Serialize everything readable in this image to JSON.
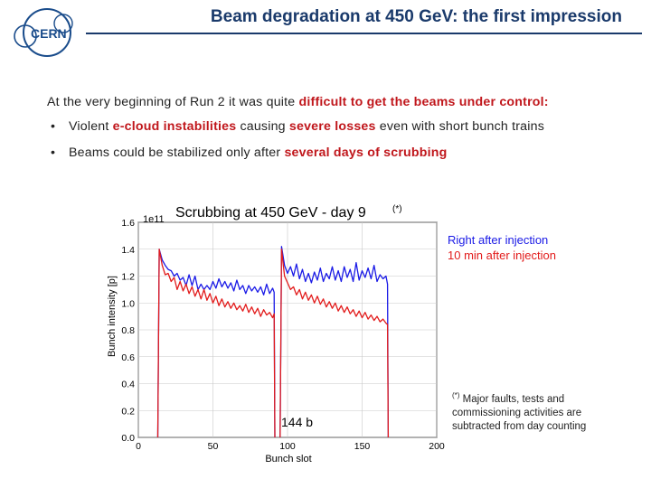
{
  "header": {
    "logo_text": "CERN",
    "title": "Beam degradation at 450 GeV: the first impression"
  },
  "intro": {
    "prefix": "At the very beginning of Run 2 it was quite ",
    "highlight": "difficult to get the beams under control:"
  },
  "bullets": [
    {
      "marker": "•",
      "t1": "Violent ",
      "h1": "e-cloud instabilities",
      "t2": " causing ",
      "h2": "severe losses",
      "t3": " even with short bunch trains"
    },
    {
      "marker": "•",
      "t1": "Beams could be stabilized only after ",
      "h1": "several days of scrubbing"
    }
  ],
  "chart_data": {
    "type": "line",
    "title": "Scrubbing at 450 GeV - day 9",
    "title_note": "(*)",
    "xlabel": "Bunch slot",
    "ylabel": "Bunch intensity [p]",
    "y_scale_label": "1e11",
    "xlim": [
      0,
      200
    ],
    "ylim": [
      0.0,
      1.6
    ],
    "xticks": [
      "0",
      "50",
      "100",
      "150",
      "200"
    ],
    "yticks": [
      "0.0",
      "0.2",
      "0.4",
      "0.6",
      "0.8",
      "1.0",
      "1.2",
      "1.4",
      "1.6"
    ],
    "annotation": "144 b",
    "series": [
      {
        "name": "Right after injection",
        "color": "#1a1ae6",
        "segments": [
          {
            "x": [
              14,
              16,
              18,
              20,
              22,
              24,
              26,
              28,
              30,
              32,
              34,
              36,
              38,
              40,
              42,
              44,
              46,
              48,
              50,
              52,
              54,
              56,
              58,
              60,
              62,
              64,
              66,
              68,
              70,
              72,
              74,
              76,
              78,
              80,
              82,
              84,
              86,
              88,
              90,
              91
            ],
            "y": [
              1.4,
              1.32,
              1.28,
              1.25,
              1.24,
              1.2,
              1.22,
              1.17,
              1.19,
              1.13,
              1.21,
              1.13,
              1.2,
              1.1,
              1.14,
              1.1,
              1.13,
              1.1,
              1.16,
              1.11,
              1.18,
              1.12,
              1.16,
              1.11,
              1.15,
              1.09,
              1.17,
              1.1,
              1.13,
              1.07,
              1.13,
              1.09,
              1.12,
              1.08,
              1.12,
              1.06,
              1.14,
              1.07,
              1.11,
              1.08
            ]
          },
          {
            "x": [
              96,
              98,
              100,
              102,
              104,
              106,
              108,
              110,
              112,
              114,
              116,
              118,
              120,
              122,
              124,
              126,
              128,
              130,
              132,
              134,
              136,
              138,
              140,
              142,
              144,
              146,
              148,
              150,
              152,
              154,
              156,
              158,
              160,
              162,
              164,
              166,
              167
            ],
            "y": [
              1.42,
              1.28,
              1.22,
              1.27,
              1.2,
              1.29,
              1.18,
              1.25,
              1.16,
              1.22,
              1.15,
              1.23,
              1.17,
              1.26,
              1.16,
              1.22,
              1.18,
              1.27,
              1.17,
              1.24,
              1.16,
              1.27,
              1.19,
              1.25,
              1.16,
              1.3,
              1.17,
              1.24,
              1.19,
              1.26,
              1.18,
              1.28,
              1.16,
              1.21,
              1.18,
              1.2,
              1.14
            ]
          }
        ]
      },
      {
        "name": "10 min after injection",
        "color": "#e21b1b",
        "segments": [
          {
            "x": [
              14,
              16,
              18,
              20,
              22,
              24,
              26,
              28,
              30,
              32,
              34,
              36,
              38,
              40,
              42,
              44,
              46,
              48,
              50,
              52,
              54,
              56,
              58,
              60,
              62,
              64,
              66,
              68,
              70,
              72,
              74,
              76,
              78,
              80,
              82,
              84,
              86,
              88,
              90,
              91
            ],
            "y": [
              1.4,
              1.28,
              1.21,
              1.22,
              1.16,
              1.19,
              1.1,
              1.16,
              1.09,
              1.14,
              1.07,
              1.12,
              1.05,
              1.1,
              1.03,
              1.1,
              1.02,
              1.07,
              1.0,
              1.05,
              0.98,
              1.03,
              0.97,
              1.01,
              0.96,
              1.0,
              0.95,
              0.98,
              0.94,
              0.99,
              0.93,
              0.97,
              0.92,
              0.96,
              0.9,
              0.95,
              0.91,
              0.93,
              0.89,
              0.92
            ]
          },
          {
            "x": [
              96,
              98,
              100,
              102,
              104,
              106,
              108,
              110,
              112,
              114,
              116,
              118,
              120,
              122,
              124,
              126,
              128,
              130,
              132,
              134,
              136,
              138,
              140,
              142,
              144,
              146,
              148,
              150,
              152,
              154,
              156,
              158,
              160,
              162,
              164,
              166,
              167
            ],
            "y": [
              1.4,
              1.2,
              1.15,
              1.1,
              1.12,
              1.06,
              1.1,
              1.03,
              1.08,
              1.02,
              1.06,
              1.0,
              1.05,
              0.99,
              1.03,
              0.97,
              1.01,
              0.96,
              1.0,
              0.94,
              0.98,
              0.93,
              0.97,
              0.92,
              0.95,
              0.9,
              0.94,
              0.89,
              0.93,
              0.88,
              0.91,
              0.87,
              0.9,
              0.86,
              0.88,
              0.85,
              0.84
            ]
          }
        ]
      }
    ]
  },
  "legend": {
    "items": [
      "Right after injection",
      "10 min after injection"
    ]
  },
  "footnote": {
    "marker": "(*)",
    "text": " Major faults, tests and commissioning activities are subtracted from day counting"
  },
  "colors": {
    "title": "#1a3a6b",
    "highlight": "#c0161b",
    "axis": "#000000"
  }
}
